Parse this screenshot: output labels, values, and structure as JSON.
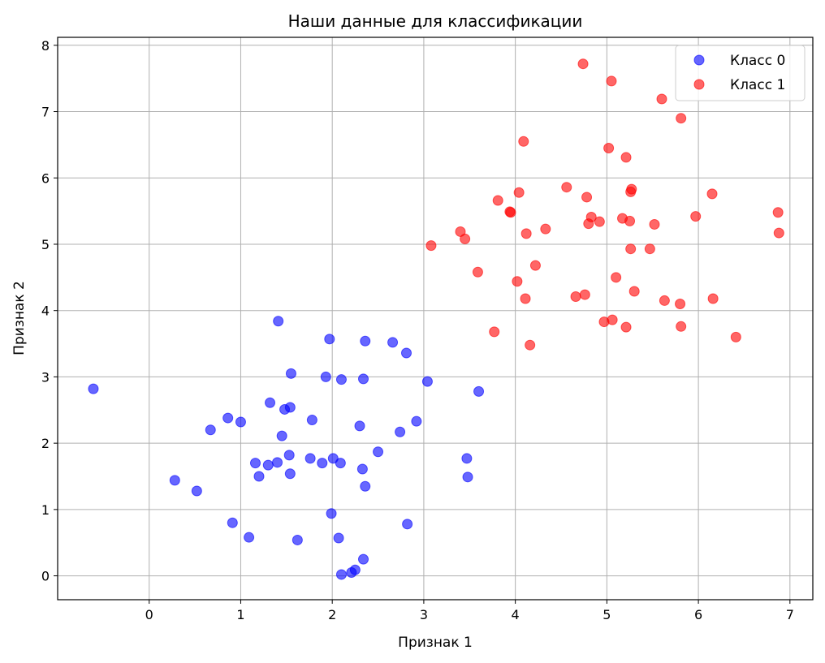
{
  "chart_data": {
    "type": "scatter",
    "title": "Наши данные для классификации",
    "xlabel": "Признак 1",
    "ylabel": "Признак 2",
    "xlim": [
      -1.0,
      7.25
    ],
    "ylim": [
      -0.36,
      8.12
    ],
    "xticks": [
      "0",
      "1",
      "2",
      "3",
      "4",
      "5",
      "6",
      "7"
    ],
    "yticks": [
      "0",
      "1",
      "2",
      "3",
      "4",
      "5",
      "6",
      "7",
      "8"
    ],
    "grid": true,
    "legend_position": "top-right",
    "series": [
      {
        "name": "Класс 0",
        "color": "#0000ff",
        "points": [
          [
            -0.61,
            2.82
          ],
          [
            0.28,
            1.44
          ],
          [
            0.52,
            1.28
          ],
          [
            0.67,
            2.2
          ],
          [
            0.86,
            2.38
          ],
          [
            0.91,
            0.8
          ],
          [
            1.0,
            2.32
          ],
          [
            1.09,
            0.58
          ],
          [
            1.16,
            1.7
          ],
          [
            1.2,
            1.5
          ],
          [
            1.3,
            1.67
          ],
          [
            1.32,
            2.61
          ],
          [
            1.4,
            1.71
          ],
          [
            1.41,
            3.84
          ],
          [
            1.45,
            2.11
          ],
          [
            1.48,
            2.51
          ],
          [
            1.53,
            1.82
          ],
          [
            1.54,
            1.54
          ],
          [
            1.54,
            2.54
          ],
          [
            1.55,
            3.05
          ],
          [
            1.62,
            0.54
          ],
          [
            1.76,
            1.77
          ],
          [
            1.78,
            2.35
          ],
          [
            1.89,
            1.7
          ],
          [
            1.93,
            3.0
          ],
          [
            1.97,
            3.57
          ],
          [
            1.99,
            0.94
          ],
          [
            2.01,
            1.77
          ],
          [
            2.07,
            0.57
          ],
          [
            2.09,
            1.7
          ],
          [
            2.1,
            2.96
          ],
          [
            2.1,
            0.02
          ],
          [
            2.21,
            0.05
          ],
          [
            2.25,
            0.09
          ],
          [
            2.3,
            2.26
          ],
          [
            2.33,
            1.61
          ],
          [
            2.34,
            2.97
          ],
          [
            2.34,
            0.25
          ],
          [
            2.36,
            1.35
          ],
          [
            2.36,
            3.54
          ],
          [
            2.5,
            1.87
          ],
          [
            2.66,
            3.52
          ],
          [
            2.74,
            2.17
          ],
          [
            2.81,
            3.36
          ],
          [
            2.82,
            0.78
          ],
          [
            2.92,
            2.33
          ],
          [
            3.04,
            2.93
          ],
          [
            3.47,
            1.77
          ],
          [
            3.48,
            1.49
          ],
          [
            3.6,
            2.78
          ]
        ]
      },
      {
        "name": "Класс 1",
        "color": "#ff0000",
        "points": [
          [
            3.08,
            4.98
          ],
          [
            3.4,
            5.19
          ],
          [
            3.45,
            5.08
          ],
          [
            3.59,
            4.58
          ],
          [
            3.77,
            3.68
          ],
          [
            3.81,
            5.66
          ],
          [
            3.94,
            5.49
          ],
          [
            3.95,
            5.48
          ],
          [
            4.02,
            4.44
          ],
          [
            4.04,
            5.78
          ],
          [
            4.09,
            6.55
          ],
          [
            4.11,
            4.18
          ],
          [
            4.12,
            5.16
          ],
          [
            4.16,
            3.48
          ],
          [
            4.22,
            4.68
          ],
          [
            4.33,
            5.23
          ],
          [
            4.56,
            5.86
          ],
          [
            4.66,
            4.21
          ],
          [
            4.74,
            7.72
          ],
          [
            4.76,
            4.24
          ],
          [
            4.78,
            5.71
          ],
          [
            4.8,
            5.31
          ],
          [
            4.83,
            5.41
          ],
          [
            4.92,
            5.34
          ],
          [
            4.97,
            3.83
          ],
          [
            5.02,
            6.45
          ],
          [
            5.05,
            7.46
          ],
          [
            5.06,
            3.86
          ],
          [
            5.1,
            4.5
          ],
          [
            5.17,
            5.39
          ],
          [
            5.21,
            6.31
          ],
          [
            5.21,
            3.75
          ],
          [
            5.25,
            5.35
          ],
          [
            5.26,
            4.93
          ],
          [
            5.26,
            5.79
          ],
          [
            5.27,
            5.83
          ],
          [
            5.3,
            4.29
          ],
          [
            5.52,
            5.3
          ],
          [
            5.6,
            7.19
          ],
          [
            5.63,
            4.15
          ],
          [
            5.47,
            4.93
          ],
          [
            5.8,
            4.1
          ],
          [
            5.81,
            6.9
          ],
          [
            5.81,
            3.76
          ],
          [
            5.97,
            5.42
          ],
          [
            6.15,
            5.76
          ],
          [
            6.16,
            4.18
          ],
          [
            6.41,
            3.6
          ],
          [
            6.87,
            5.48
          ],
          [
            6.88,
            5.17
          ]
        ]
      }
    ]
  }
}
